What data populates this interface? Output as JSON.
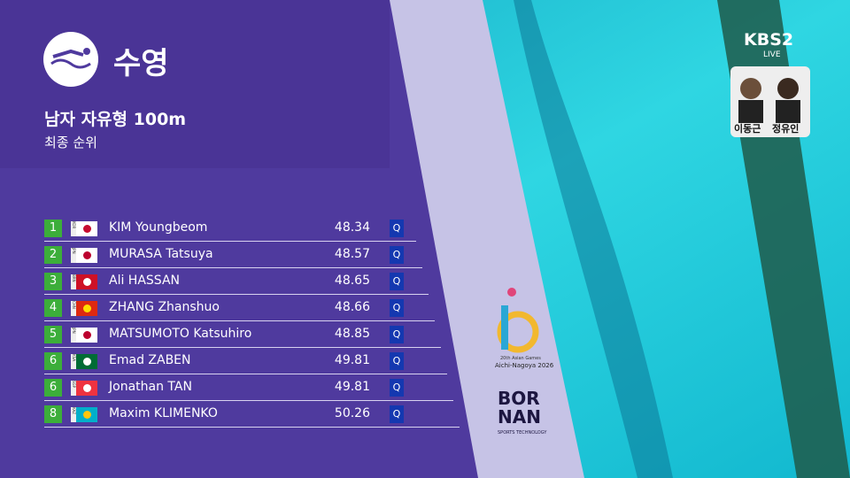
{
  "header": {
    "sport": "수영",
    "event": "남자 자유형 100m",
    "stage": "최종 순위"
  },
  "table": {
    "rows": [
      {
        "rank": "1",
        "country": "KOR",
        "name": "KIM Youngbeom",
        "time": "48.34",
        "qual": "Q"
      },
      {
        "rank": "2",
        "country": "JPN",
        "name": "MURASA Tatsuya",
        "time": "48.57",
        "qual": "Q"
      },
      {
        "rank": "3",
        "country": "BRN",
        "name": "Ali HASSAN",
        "time": "48.65",
        "qual": "Q"
      },
      {
        "rank": "4",
        "country": "CHN",
        "name": "ZHANG Zhanshuo",
        "time": "48.66",
        "qual": "Q"
      },
      {
        "rank": "5",
        "country": "JPN",
        "name": "MATSUMOTO Katsuhiro",
        "time": "48.85",
        "qual": "Q"
      },
      {
        "rank": "6",
        "country": "KSA",
        "name": "Emad ZABEN",
        "time": "49.81",
        "qual": "Q"
      },
      {
        "rank": "6",
        "country": "SGP",
        "name": "Jonathan TAN",
        "time": "49.81",
        "qual": "Q"
      },
      {
        "rank": "8",
        "country": "KAZ",
        "name": "Maxim KLIMENKO",
        "time": "50.26",
        "qual": "Q"
      }
    ]
  },
  "broadcaster": {
    "logo": "KBS2",
    "live": "LIVE",
    "commentators": [
      "이동근",
      "정유인"
    ]
  },
  "games": {
    "line1": "20th Asian Games",
    "line2": "Aichi-Nagoya 2026"
  },
  "sponsor": {
    "name1": "BOR",
    "name2": "NAN",
    "tagline": "SPORTS TECHNOLOGY"
  }
}
